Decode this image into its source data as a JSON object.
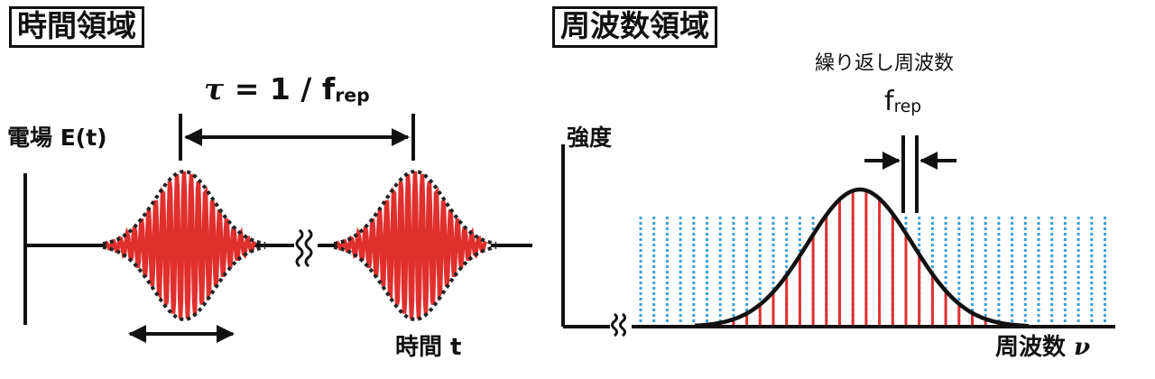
{
  "time_domain": {
    "title": "時間領域",
    "period_label": {
      "symbol": "τ",
      "eq": " = 1 / f",
      "sub": "rep"
    },
    "y_axis_label": "電場 E(t)",
    "x_axis_label": "時間 t"
  },
  "freq_domain": {
    "title": "周波数領域",
    "repetition_caption": "繰り返し周波数",
    "spacing_label": {
      "base": "f",
      "sub": "rep"
    },
    "y_axis_label": "強度",
    "x_axis_label": {
      "text": "周波数 ",
      "symbol": "ν"
    }
  },
  "colors": {
    "carrier": "#e0302e",
    "envelope": "#222222",
    "comb_dashed": "#3aa0d8",
    "axis": "#111111"
  },
  "icons": {
    "axis_break": "double-wavy-break-icon",
    "arrow": "double-headed-arrow-icon"
  }
}
